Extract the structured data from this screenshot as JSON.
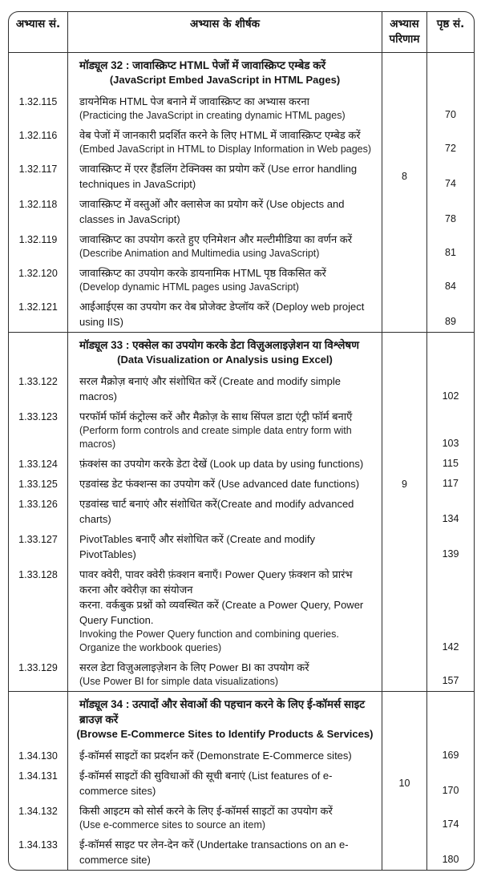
{
  "table": {
    "headers": {
      "exercise_no": "अभ्यास सं.",
      "title": "अभ्यास के शीर्षक",
      "outcome": "अभ्यास परिणाम",
      "page_no": "पृष्ठ सं."
    },
    "sections": [
      {
        "module_title_hindi": "मॉड्यूल 32 : जावास्क्रिप्ट HTML पेजों में जावास्क्रिप्ट एम्बेड करें",
        "module_title_english": "(JavaScript Embed JavaScript in HTML Pages)",
        "rows": [
          {
            "no": "1.32.115",
            "lines": [
              "डायनेमिक HTML पेज बनाने में जावास्क्रिप्ट का अभ्यास करना",
              "(Practicing the JavaScript in creating dynamic HTML pages)"
            ],
            "page": "70"
          },
          {
            "no": "1.32.116",
            "lines": [
              "वेब पेजों में जानकारी प्रदर्शित करने के लिए HTML में जावास्क्रिप्ट एम्बेड करें",
              "(Embed JavaScript in HTML to Display Information in Web pages)"
            ],
            "page": "72"
          },
          {
            "no": "1.32.117",
            "lines": [
              "जावास्क्रिप्ट में एरर हैंडलिंग टेक्निक्स का प्रयोग करें (Use error handling techniques in JavaScript)"
            ],
            "outcome": "8",
            "page": "74"
          },
          {
            "no": "1.32.118",
            "lines": [
              "जावास्क्रिप्ट में वस्तुओं और क्लासेज का प्रयोग करें (Use objects and classes in JavaScript)"
            ],
            "page": "78"
          },
          {
            "no": "1.32.119",
            "lines": [
              "जावास्क्रिप्ट का उपयोग करते हुए एनिमेशन और मल्टीमीडिया का वर्णन करें",
              "(Describe Animation and Multimedia using JavaScript)"
            ],
            "page": "81"
          },
          {
            "no": "1.32.120",
            "lines": [
              "जावास्क्रिप्ट का उपयोग करके डायनामिक HTML पृष्ठ विकसित करें",
              "(Develop dynamic HTML pages using JavaScript)"
            ],
            "page": "84"
          },
          {
            "no": "1.32.121",
            "lines": [
              "आईआईएस का उपयोग कर वेब प्रोजेक्ट डेप्लॉय करें (Deploy web project using IIS)"
            ],
            "page": "89"
          }
        ]
      },
      {
        "module_title_hindi": "मॉड्यूल 33 : एक्सेल का उपयोग करके डेटा विज़ुअलाइज़ेशन या विश्लेषण",
        "module_title_english": "(Data Visualization or Analysis using Excel)",
        "rows": [
          {
            "no": "1.33.122",
            "lines": [
              "सरल मैक्रोज़ बनाएं और संशोधित करें (Create and modify simple macros)"
            ],
            "page": "102"
          },
          {
            "no": "1.33.123",
            "lines": [
              "परफॉर्म फॉर्म कंट्रोल्स करें और मैक्रोज़ के साथ सिंपल डाटा एंट्री फॉर्म बनाएँ",
              "(Perform form controls and create simple data entry form with macros)"
            ],
            "page": "103"
          },
          {
            "no": "1.33.124",
            "lines": [
              "फ़ंक्शंस का उपयोग करके डेटा देखें (Look up data by using functions)"
            ],
            "page": "115"
          },
          {
            "no": "1.33.125",
            "lines": [
              "एडवांस्ड डेट फंक्शन्स का उपयोग करें (Use advanced date functions)"
            ],
            "outcome": "9",
            "page": "117"
          },
          {
            "no": "1.33.126",
            "lines": [
              "एडवांस्ड चार्ट बनाएं और संशोधित करें(Create and modify advanced charts)"
            ],
            "page": "134"
          },
          {
            "no": "1.33.127",
            "lines": [
              "PivotTables बनाएँ और संशोधित करें (Create and modify PivotTables)"
            ],
            "page": "139"
          },
          {
            "no": "1.33.128",
            "lines": [
              "पावर क्वेरी, पावर क्वेरी फ़ंक्शन बनाएँ। Power Query फ़ंक्शन को प्रारंभ करना और क्वेरीज़ का संयोजन",
              "करना. वर्कबुक प्रश्नों को व्यवस्थित करें (Create a Power Query, Power Query Function.",
              "Invoking the Power Query function and combining queries. Organize the workbook queries)"
            ],
            "page": "142"
          },
          {
            "no": "1.33.129",
            "lines": [
              "सरल डेटा विज़ुअलाइज़ेशन के लिए Power BI का उपयोग करें",
              "(Use Power BI for simple data visualizations)"
            ],
            "page": "157"
          }
        ]
      },
      {
        "module_title_hindi": "मॉड्यूल 34 : उत्पादों और सेवाओं की पहचान करने के लिए ई-कॉमर्स साइट ब्राउज़ करें",
        "module_title_english": "(Browse E-Commerce Sites to Identify Products & Services)",
        "rows": [
          {
            "no": "1.34.130",
            "lines": [
              "ई-कॉमर्स साइटों का प्रदर्शन करें (Demonstrate E-Commerce sites)"
            ],
            "page": "169"
          },
          {
            "no": "1.34.131",
            "lines": [
              "ई-कॉमर्स साइटों की सुविधाओं की सूची बनाएं (List features of e-commerce sites)"
            ],
            "outcome": "10",
            "page": "170"
          },
          {
            "no": "1.34.132",
            "lines": [
              "किसी आइटम को सोर्स करने के लिए ई-कॉमर्स साइटों का उपयोग करें",
              "(Use e-commerce sites to source an item)"
            ],
            "page": "174"
          },
          {
            "no": "1.34.133",
            "lines": [
              "ई-कॉमर्स साइट पर लेन-देन करें (Undertake transactions on an e-commerce site)"
            ],
            "page": "180"
          }
        ]
      }
    ]
  }
}
